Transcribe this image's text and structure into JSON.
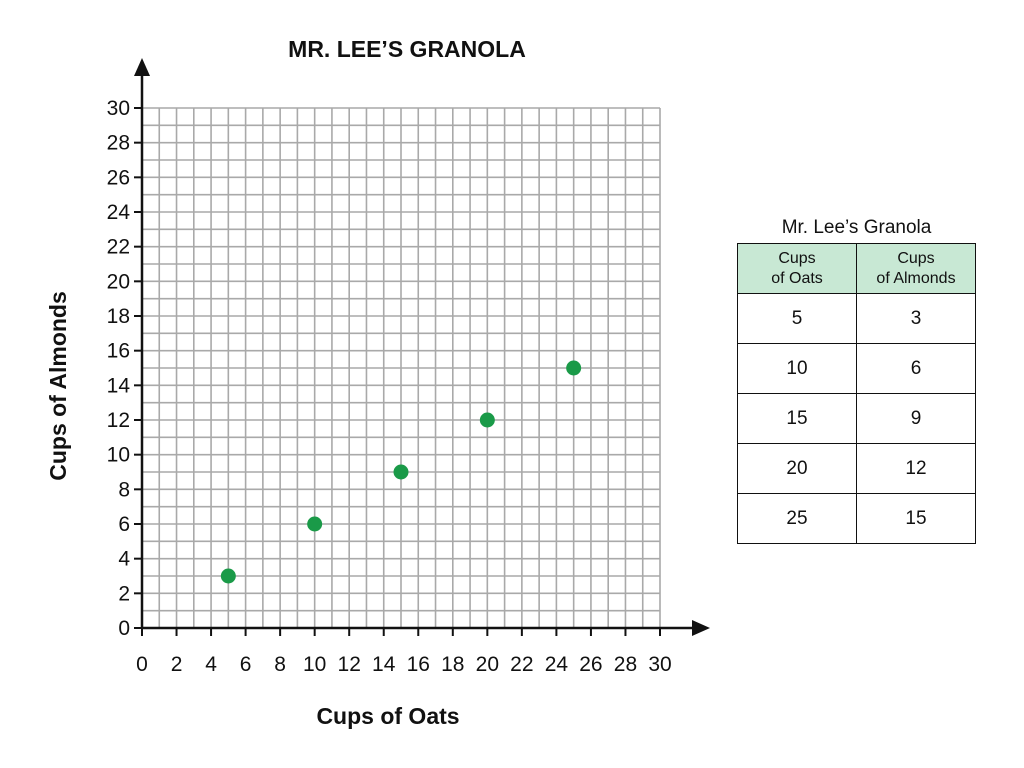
{
  "chart_data": {
    "type": "scatter",
    "title": "MR. LEE’S GRANOLA",
    "xlabel": "Cups of Oats",
    "ylabel": "Cups of Almonds",
    "xlim": [
      0,
      30
    ],
    "ylim": [
      0,
      30
    ],
    "xticks": [
      0,
      2,
      4,
      6,
      8,
      10,
      12,
      14,
      16,
      18,
      20,
      22,
      24,
      26,
      28,
      30
    ],
    "yticks": [
      0,
      2,
      4,
      6,
      8,
      10,
      12,
      14,
      16,
      18,
      20,
      22,
      24,
      26,
      28,
      30
    ],
    "grid": true,
    "point_color": "#1a9a48",
    "points": [
      {
        "x": 5,
        "y": 3
      },
      {
        "x": 10,
        "y": 6
      },
      {
        "x": 15,
        "y": 9
      },
      {
        "x": 20,
        "y": 12
      },
      {
        "x": 25,
        "y": 15
      }
    ]
  },
  "table": {
    "caption": "Mr. Lee’s Granola",
    "header_color": "#c8e8d4",
    "headers": [
      {
        "line1": "Cups",
        "line2": "of Oats"
      },
      {
        "line1": "Cups",
        "line2": "of Almonds"
      }
    ],
    "rows": [
      [
        "5",
        "3"
      ],
      [
        "10",
        "6"
      ],
      [
        "15",
        "9"
      ],
      [
        "20",
        "12"
      ],
      [
        "25",
        "15"
      ]
    ]
  }
}
